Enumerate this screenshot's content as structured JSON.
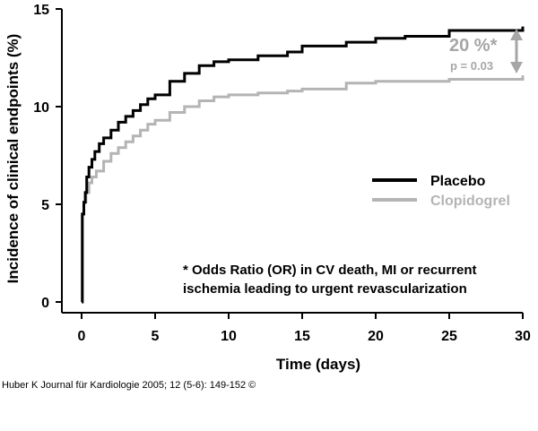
{
  "chart_data": {
    "type": "line",
    "xlabel": "Time (days)",
    "ylabel": "Incidence of clinical endpoints (%)",
    "xlim": [
      0,
      30
    ],
    "ylim": [
      0,
      15
    ],
    "xticks": [
      0,
      5,
      10,
      15,
      20,
      25,
      30
    ],
    "yticks": [
      0,
      5,
      10,
      15
    ],
    "grid": false,
    "legend_position": "right",
    "series": [
      {
        "name": "Placebo",
        "color": "#000000",
        "x": [
          0,
          0.05,
          0.15,
          0.25,
          0.35,
          0.5,
          0.7,
          0.9,
          1.2,
          1.5,
          2,
          2.5,
          3,
          3.5,
          4,
          4.5,
          5,
          6,
          7,
          8,
          9,
          10,
          12,
          14,
          15,
          18,
          20,
          22,
          25,
          30
        ],
        "y": [
          0,
          4.5,
          5.1,
          5.6,
          6.4,
          6.9,
          7.3,
          7.7,
          8.1,
          8.4,
          8.8,
          9.2,
          9.5,
          9.8,
          10.1,
          10.4,
          10.6,
          11.3,
          11.7,
          12.1,
          12.3,
          12.4,
          12.6,
          12.8,
          13.1,
          13.3,
          13.5,
          13.6,
          13.9,
          14.1
        ]
      },
      {
        "name": "Clopidogrel",
        "color": "#b4b4b4",
        "x": [
          0,
          0.05,
          0.15,
          0.3,
          0.5,
          0.7,
          1,
          1.5,
          2,
          2.5,
          3,
          3.5,
          4,
          4.5,
          5,
          6,
          7,
          8,
          9,
          10,
          12,
          14,
          15,
          18,
          20,
          25,
          30
        ],
        "y": [
          0,
          4.5,
          5.1,
          5.6,
          6.1,
          6.4,
          6.7,
          7.2,
          7.6,
          7.9,
          8.2,
          8.5,
          8.8,
          9.1,
          9.3,
          9.7,
          10.0,
          10.3,
          10.5,
          10.6,
          10.7,
          10.8,
          10.9,
          11.2,
          11.3,
          11.4,
          11.6
        ]
      }
    ],
    "difference_annotation": {
      "label": "20 %*",
      "pvalue": "p = 0.03",
      "color": "#a6a6a6"
    },
    "footnote": [
      "* Odds Ratio (OR) in CV death, MI or recurrent",
      "ischemia leading to urgent revascularization"
    ]
  },
  "source": "Huber K Journal für Kardiologie 2005; 12 (5-6): 149-152 ©"
}
